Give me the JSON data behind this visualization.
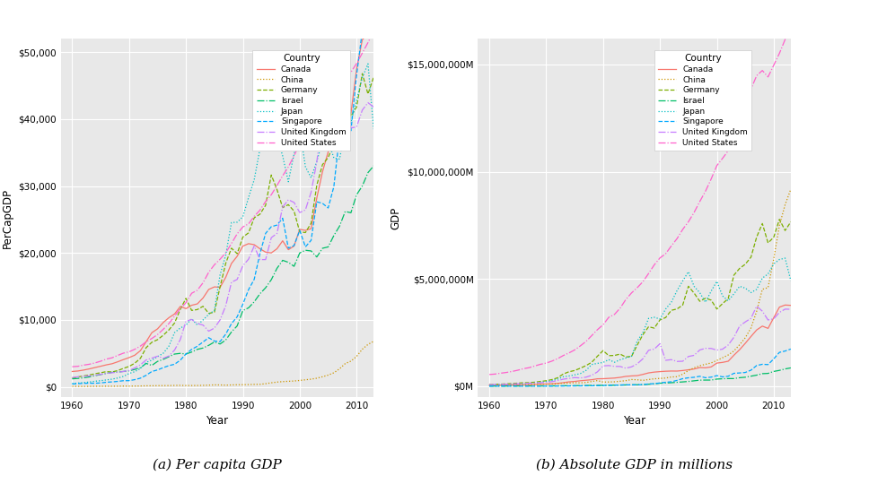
{
  "countries": [
    "Canada",
    "China",
    "Germany",
    "Israel",
    "Japan",
    "Singapore",
    "United Kingdom",
    "United States"
  ],
  "colors": {
    "Canada": "#F8766D",
    "China": "#CD9600",
    "Germany": "#7CAE00",
    "Israel": "#00BE67",
    "Japan": "#00BFC4",
    "Singapore": "#00A9FF",
    "United Kingdom": "#C77CFF",
    "United States": "#FF61CC"
  },
  "linestyles": {
    "Canada": "-",
    "China": ":",
    "Germany": "--",
    "Israel": "-.",
    "Japan": ":",
    "Singapore": "--",
    "United Kingdom": "-.",
    "United States": "-."
  },
  "years": [
    1960,
    1961,
    1962,
    1963,
    1964,
    1965,
    1966,
    1967,
    1968,
    1969,
    1970,
    1971,
    1972,
    1973,
    1974,
    1975,
    1976,
    1977,
    1978,
    1979,
    1980,
    1981,
    1982,
    1983,
    1984,
    1985,
    1986,
    1987,
    1988,
    1989,
    1990,
    1991,
    1992,
    1993,
    1994,
    1995,
    1996,
    1997,
    1998,
    1999,
    2000,
    2001,
    2002,
    2003,
    2004,
    2005,
    2006,
    2007,
    2008,
    2009,
    2010,
    2011,
    2012,
    2013
  ],
  "percap_gdp": {
    "Canada": [
      2294,
      2368,
      2506,
      2679,
      2881,
      3076,
      3283,
      3450,
      3741,
      4069,
      4370,
      4726,
      5413,
      6745,
      8089,
      8658,
      9608,
      10330,
      10887,
      12007,
      11682,
      12185,
      12393,
      13271,
      14551,
      14931,
      14871,
      16376,
      18433,
      19502,
      21024,
      21386,
      21237,
      20626,
      20124,
      20006,
      20624,
      21813,
      20488,
      21025,
      23533,
      23370,
      23625,
      28208,
      32122,
      35092,
      40326,
      44002,
      45177,
      40828,
      47447,
      51847,
      52756,
      52219
    ],
    "China": [
      90,
      76,
      69,
      73,
      87,
      97,
      100,
      97,
      102,
      116,
      113,
      120,
      131,
      158,
      162,
      178,
      186,
      188,
      210,
      222,
      194,
      197,
      203,
      222,
      250,
      294,
      281,
      252,
      284,
      310,
      317,
      333,
      366,
      377,
      469,
      604,
      709,
      782,
      828,
      873,
      959,
      1053,
      1148,
      1288,
      1508,
      1754,
      2099,
      2693,
      3472,
      3838,
      4552,
      5618,
      6338,
      6807
    ],
    "Germany": [
      1300,
      1474,
      1634,
      1759,
      1954,
      2107,
      2268,
      2218,
      2429,
      2756,
      3050,
      3530,
      4271,
      5853,
      6659,
      7042,
      7703,
      8501,
      9539,
      11573,
      13221,
      11413,
      11543,
      12034,
      10972,
      11147,
      14960,
      18476,
      20715,
      19893,
      22371,
      23001,
      25248,
      25785,
      27110,
      31647,
      29469,
      26773,
      27215,
      26255,
      23149,
      23046,
      24439,
      30120,
      33189,
      34249,
      36369,
      41730,
      45492,
      40422,
      41786,
      46795,
      43741,
      46268
    ],
    "Israel": [
      1200,
      1256,
      1347,
      1481,
      1665,
      1838,
      2000,
      2157,
      2200,
      2300,
      2400,
      2600,
      2850,
      3500,
      3200,
      3800,
      4100,
      4500,
      4900,
      5000,
      4900,
      5200,
      5600,
      5800,
      6200,
      6700,
      6400,
      7000,
      8200,
      9100,
      11400,
      11800,
      12700,
      13900,
      14800,
      16000,
      17700,
      18900,
      18600,
      18000,
      20000,
      20400,
      20300,
      19400,
      20700,
      20900,
      22600,
      24000,
      26200,
      26000,
      28700,
      30000,
      32000,
      33000
    ],
    "Japan": [
      479,
      559,
      637,
      722,
      832,
      921,
      1034,
      1150,
      1320,
      1560,
      1993,
      2263,
      2737,
      3658,
      3981,
      4508,
      5007,
      6079,
      8110,
      8783,
      9230,
      10185,
      9214,
      9985,
      10834,
      11406,
      16736,
      19717,
      24537,
      24591,
      25401,
      28271,
      30949,
      35511,
      38800,
      42522,
      37391,
      34490,
      30640,
      34789,
      38532,
      32878,
      31234,
      33675,
      36709,
      36785,
      34188,
      34023,
      38267,
      39471,
      42849,
      46172,
      48254,
      38491
    ],
    "Singapore": [
      427,
      481,
      519,
      542,
      537,
      586,
      686,
      738,
      813,
      918,
      925,
      1074,
      1298,
      1724,
      2296,
      2524,
      2864,
      3167,
      3375,
      3981,
      4917,
      5595,
      6065,
      6703,
      7339,
      6839,
      6760,
      7882,
      9447,
      10463,
      12346,
      14510,
      16062,
      19888,
      22924,
      23918,
      24165,
      25187,
      20714,
      21102,
      23364,
      20904,
      21885,
      27635,
      27416,
      26720,
      29910,
      37597,
      39722,
      38256,
      46571,
      53177,
      54776,
      55979
    ],
    "United Kingdom": [
      1393,
      1498,
      1581,
      1639,
      1740,
      1877,
      2006,
      2115,
      2185,
      2294,
      2438,
      2820,
      3293,
      4022,
      4291,
      4576,
      4268,
      4610,
      5498,
      7063,
      9798,
      10064,
      9459,
      9228,
      8316,
      8778,
      10003,
      12127,
      15631,
      16042,
      18098,
      19065,
      21050,
      19010,
      19009,
      22282,
      22920,
      26855,
      27948,
      27547,
      26031,
      26428,
      29064,
      33609,
      40278,
      42165,
      43693,
      50179,
      44888,
      38655,
      38842,
      41338,
      42445,
      41787
    ],
    "United States": [
      3007,
      3067,
      3244,
      3374,
      3574,
      3828,
      4146,
      4336,
      4696,
      5032,
      5234,
      5609,
      6094,
      6726,
      7226,
      7801,
      8592,
      9453,
      10565,
      11674,
      12575,
      13976,
      14434,
      15544,
      17121,
      18237,
      19071,
      20032,
      21417,
      22857,
      23889,
      24342,
      25474,
      26387,
      27695,
      28691,
      30069,
      31530,
      32854,
      34515,
      36330,
      37134,
      38028,
      39490,
      41725,
      44123,
      46301,
      47975,
      47978,
      46999,
      48311,
      49855,
      51423,
      53143
    ]
  },
  "abs_gdp_millions": {
    "Canada": [
      40674,
      43200,
      47452,
      51882,
      57548,
      62843,
      68614,
      74100,
      82090,
      91340,
      100565,
      110540,
      128780,
      163190,
      200240,
      220730,
      252400,
      276030,
      300440,
      343280,
      347600,
      362850,
      378300,
      410000,
      455500,
      476990,
      490200,
      548700,
      618800,
      655500,
      679230,
      695500,
      706000,
      703400,
      729300,
      763700,
      799900,
      867000,
      855000,
      897000,
      1076000,
      1108000,
      1163000,
      1443000,
      1700000,
      1999000,
      2316000,
      2621000,
      2800000,
      2694000,
      3192000,
      3685000,
      3783000,
      3767000
    ],
    "China": [
      59716,
      50056,
      47280,
      50269,
      59862,
      70005,
      77148,
      72600,
      78130,
      90244,
      91500,
      97306,
      113960,
      138520,
      143240,
      163412,
      153473,
      172240,
      214790,
      261320,
      191176,
      194316,
      203122,
      228640,
      257430,
      309468,
      297787,
      270680,
      309470,
      343938,
      360858,
      379272,
      428284,
      440506,
      559230,
      728082,
      856084,
      952654,
      1019270,
      1083280,
      1198476,
      1324812,
      1453830,
      1640960,
      1931650,
      2256919,
      2712950,
      3494056,
      4515032,
      4594307,
      5930529,
      7492432,
      8461623,
      9181204
    ],
    "Germany": [
      72380,
      82160,
      96010,
      108650,
      124540,
      140440,
      160020,
      163150,
      186150,
      220660,
      253000,
      306500,
      388890,
      566550,
      671840,
      729380,
      837200,
      958600,
      1114170,
      1394420,
      1657700,
      1421600,
      1432400,
      1494500,
      1360000,
      1387900,
      1912900,
      2401400,
      2769400,
      2706800,
      3088870,
      3200000,
      3536360,
      3599000,
      3782000,
      4660000,
      4340000,
      3958000,
      4100000,
      4012000,
      3596000,
      3847000,
      4082000,
      5178000,
      5490000,
      5686000,
      6016000,
      6953000,
      7584000,
      6679000,
      6943000,
      7777000,
      7257000,
      7659000
    ],
    "Israel": [
      4200,
      4420,
      4950,
      5580,
      6490,
      7350,
      8200,
      9150,
      9800,
      10500,
      11500,
      13000,
      15000,
      20000,
      19000,
      23500,
      26000,
      30000,
      35000,
      37000,
      38000,
      42000,
      47000,
      51000,
      58000,
      65000,
      65000,
      74000,
      91000,
      106000,
      138000,
      146000,
      161000,
      180000,
      198000,
      220000,
      250000,
      280000,
      284000,
      284000,
      330000,
      345000,
      354000,
      354000,
      394000,
      417000,
      466000,
      514000,
      583000,
      595000,
      686000,
      736000,
      803000,
      852000
    ],
    "Japan": [
      44307,
      54128,
      63010,
      71160,
      83757,
      93087,
      109368,
      128344,
      148568,
      178143,
      212609,
      256027,
      324638,
      440039,
      473234,
      527032,
      586282,
      735116,
      1009990,
      1062880,
      1105070,
      1237130,
      1114100,
      1231250,
      1314500,
      1397620,
      2098400,
      2496770,
      3157980,
      3210700,
      3131220,
      3597990,
      3913600,
      4454210,
      4906240,
      5333700,
      4655500,
      4356100,
      3911960,
      4431800,
      4888000,
      4205500,
      3980200,
      4302100,
      4655100,
      4571800,
      4361600,
      4515100,
      5037993,
      5231390,
      5700100,
      5905600,
      5969090,
      4919563
    ],
    "Singapore": [
      704,
      820,
      919,
      1005,
      1051,
      1225,
      1556,
      1820,
      2194,
      2715,
      2957,
      3749,
      4856,
      6800,
      9534,
      11138,
      13706,
      16400,
      18784,
      24125,
      32387,
      38803,
      45019,
      52944,
      62107,
      59026,
      61049,
      75990,
      100700,
      117900,
      148617,
      183050,
      202498,
      269680,
      349990,
      389790,
      413420,
      460600,
      393020,
      420450,
      492000,
      433400,
      462820,
      598700,
      616200,
      638600,
      745100,
      962900,
      1019500,
      1005600,
      1271700,
      1575400,
      1638000,
      1729200
    ],
    "United Kingdom": [
      73490,
      78380,
      84500,
      90340,
      99890,
      111900,
      122900,
      133200,
      145700,
      159400,
      174400,
      210000,
      257000,
      326000,
      360000,
      400500,
      382000,
      419000,
      507000,
      666000,
      946000,
      961000,
      923000,
      918000,
      836000,
      900000,
      1038000,
      1280000,
      1673000,
      1729000,
      1979000,
      1206000,
      1236000,
      1152000,
      1162000,
      1384000,
      1437000,
      1688000,
      1765000,
      1758000,
      1681000,
      1724000,
      1920000,
      2280000,
      2802000,
      2995000,
      3163000,
      3728000,
      3495000,
      3085000,
      3141000,
      3438000,
      3592000,
      3585000
    ],
    "United States": [
      543300,
      563300,
      605100,
      638600,
      685800,
      743700,
      815000,
      861700,
      942500,
      1019900,
      1075900,
      1167800,
      1282400,
      1428500,
      1548800,
      1688900,
      1877600,
      2085500,
      2356900,
      2632100,
      2862500,
      3210900,
      3345000,
      3638000,
      4040700,
      4346700,
      4590200,
      4870200,
      5252600,
      5657700,
      5979600,
      6174000,
      6539300,
      6878700,
      7308800,
      7664100,
      8100200,
      8608500,
      9089200,
      9660600,
      10284800,
      10621800,
      10977500,
      11510700,
      12274900,
      13093700,
      13855900,
      14477600,
      14718600,
      14418700,
      14964400,
      15517900,
      16163200,
      16768100
    ]
  },
  "bg_color": "#E8E8E8",
  "grid_color": "#FFFFFF",
  "title_left": "(a) Per capita GDP",
  "title_right": "(b) Absolute GDP in millions",
  "ylabel_left": "PerCapGDP",
  "ylabel_right": "GDP",
  "xlabel": "Year",
  "percap_yticks": [
    0,
    10000,
    20000,
    30000,
    40000,
    50000
  ],
  "abs_yticks": [
    0,
    5000000,
    10000000,
    15000000
  ],
  "xticks": [
    1960,
    1970,
    1980,
    1990,
    2000,
    2010
  ],
  "xlim": [
    1958,
    2013
  ],
  "percap_ylim": [
    -1500,
    52000
  ],
  "abs_ylim": [
    -500000,
    16200000
  ]
}
